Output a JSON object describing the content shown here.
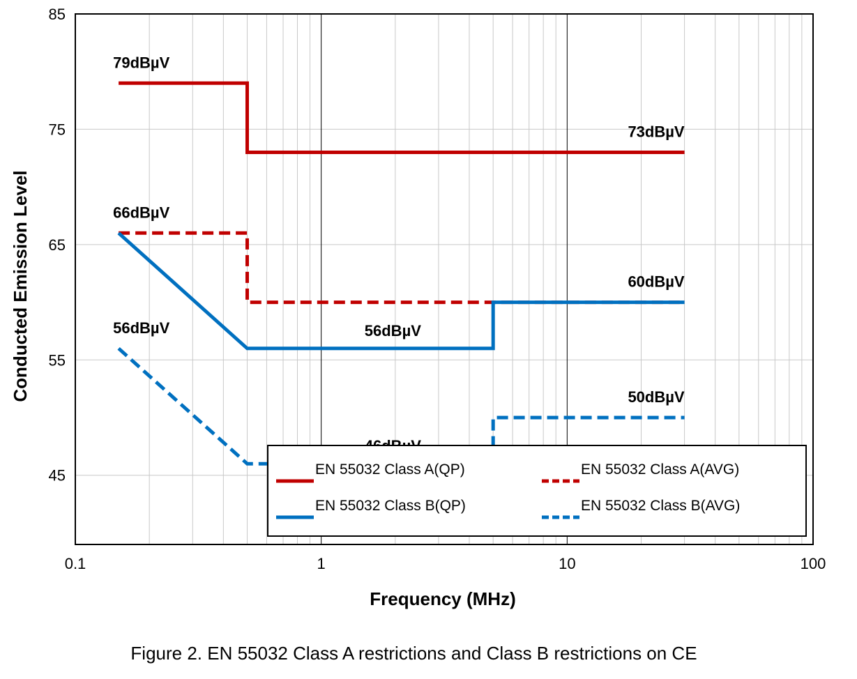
{
  "figure_caption": "Figure 2. EN 55032 Class A restrictions and Class B restrictions on CE",
  "colors": {
    "red": "#c00000",
    "blue": "#0070c0",
    "grid_minor": "#c8c8c8",
    "grid_major": "#000000"
  },
  "chart_data": {
    "type": "line",
    "xscale": "log",
    "xlim": [
      0.1,
      100
    ],
    "ylim": [
      39,
      85
    ],
    "xlabel": "Frequency (MHz)",
    "ylabel": "Conducted Emission Level",
    "xticks": [
      0.1,
      1,
      10,
      100
    ],
    "xtick_labels": [
      "0.1",
      "1",
      "10",
      "100"
    ],
    "yticks": [
      45,
      55,
      65,
      75,
      85
    ],
    "ytick_labels": [
      "45",
      "55",
      "65",
      "75",
      "85"
    ],
    "grid": true,
    "legend_position": "bottom-right",
    "series": [
      {
        "name": "EN 55032 Class A(QP)",
        "color": "#c00000",
        "style": "solid",
        "x": [
          0.15,
          0.5,
          0.5,
          30
        ],
        "y": [
          79,
          79,
          73,
          73
        ]
      },
      {
        "name": "EN 55032 Class A(AVG)",
        "color": "#c00000",
        "style": "dashed",
        "x": [
          0.15,
          0.5,
          0.5,
          30
        ],
        "y": [
          66,
          66,
          60,
          60
        ]
      },
      {
        "name": "EN 55032 Class B(QP)",
        "color": "#0070c0",
        "style": "solid",
        "x": [
          0.15,
          0.5,
          5,
          5,
          30
        ],
        "y": [
          66,
          56,
          56,
          60,
          60
        ]
      },
      {
        "name": "EN 55032 Class B(AVG)",
        "color": "#0070c0",
        "style": "dashed",
        "x": [
          0.15,
          0.5,
          5,
          5,
          30
        ],
        "y": [
          56,
          46,
          46,
          50,
          50
        ]
      }
    ],
    "annotations": [
      {
        "text": "79dBµV",
        "x": 0.15,
        "y": 79
      },
      {
        "text": "73dBµV",
        "x": 30,
        "y": 73
      },
      {
        "text": "66dBµV",
        "x": 0.15,
        "y": 66
      },
      {
        "text": "60dBµV",
        "x": 30,
        "y": 60
      },
      {
        "text": "56dBµV",
        "x": 1.5,
        "y": 56
      },
      {
        "text": "56dBµV",
        "x": 0.15,
        "y": 56
      },
      {
        "text": "46dBµV",
        "x": 1.5,
        "y": 46
      },
      {
        "text": "50dBµV",
        "x": 30,
        "y": 50
      }
    ]
  }
}
